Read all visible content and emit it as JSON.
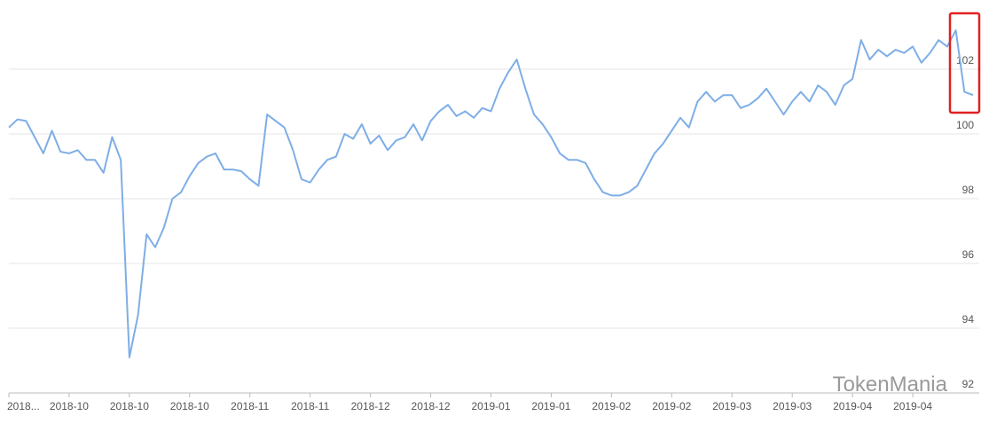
{
  "chart_data": {
    "type": "line",
    "watermark": "TokenMania",
    "categories": [
      "2018...",
      null,
      null,
      null,
      null,
      null,
      null,
      "2018-10",
      null,
      null,
      null,
      null,
      null,
      null,
      "2018-10",
      null,
      null,
      null,
      null,
      null,
      null,
      "2018-10",
      null,
      null,
      null,
      null,
      null,
      null,
      "2018-11",
      null,
      null,
      null,
      null,
      null,
      null,
      "2018-11",
      null,
      null,
      null,
      null,
      null,
      null,
      "2018-12",
      null,
      null,
      null,
      null,
      null,
      null,
      "2018-12",
      null,
      null,
      null,
      null,
      null,
      null,
      "2019-01",
      null,
      null,
      null,
      null,
      null,
      null,
      "2019-01",
      null,
      null,
      null,
      null,
      null,
      null,
      "2019-02",
      null,
      null,
      null,
      null,
      null,
      null,
      "2019-02",
      null,
      null,
      null,
      null,
      null,
      null,
      "2019-03",
      null,
      null,
      null,
      null,
      null,
      null,
      "2019-03",
      null,
      null,
      null,
      null,
      null,
      null,
      "2019-04",
      null,
      null,
      null,
      null,
      null,
      null,
      "2019-04",
      null,
      null,
      null,
      null,
      null,
      null,
      null
    ],
    "values": [
      100.2,
      100.45,
      100.4,
      99.9,
      99.4,
      100.1,
      99.45,
      99.4,
      99.5,
      99.2,
      99.2,
      98.8,
      99.9,
      99.2,
      93.1,
      94.4,
      96.9,
      96.5,
      97.1,
      98.0,
      98.2,
      98.7,
      99.1,
      99.3,
      99.4,
      98.9,
      98.9,
      98.85,
      98.6,
      98.4,
      100.6,
      100.4,
      100.2,
      99.5,
      98.6,
      98.5,
      98.9,
      99.2,
      99.3,
      100.0,
      99.85,
      100.3,
      99.7,
      99.95,
      99.5,
      99.8,
      99.9,
      100.3,
      99.8,
      100.4,
      100.7,
      100.9,
      100.55,
      100.7,
      100.5,
      100.8,
      100.7,
      101.4,
      101.9,
      102.3,
      101.4,
      100.6,
      100.3,
      99.9,
      99.4,
      99.2,
      99.2,
      99.1,
      98.6,
      98.2,
      98.1,
      98.1,
      98.2,
      98.4,
      98.9,
      99.4,
      99.7,
      100.1,
      100.5,
      100.2,
      101.0,
      101.3,
      101.0,
      101.2,
      101.2,
      100.8,
      100.9,
      101.1,
      101.4,
      101.0,
      100.6,
      101.0,
      101.3,
      101.0,
      101.5,
      101.3,
      100.9,
      101.5,
      101.7,
      102.9,
      102.3,
      102.6,
      102.4,
      102.6,
      102.5,
      102.7,
      102.2,
      102.5,
      102.9,
      102.7,
      103.2,
      101.3,
      101.2
    ],
    "color": "#7eaee6",
    "ylim": [
      92,
      104
    ],
    "yticks": [
      92,
      94,
      96,
      98,
      100,
      102
    ],
    "grid": true
  }
}
